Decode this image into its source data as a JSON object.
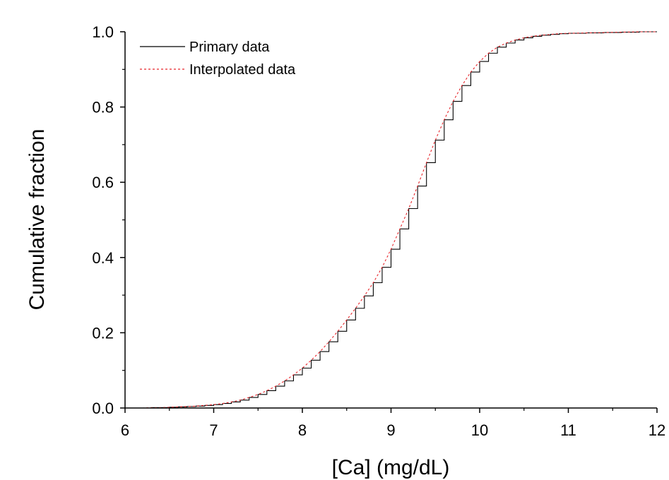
{
  "chart_data": {
    "type": "line",
    "title": "",
    "xlabel": "[Ca] (mg/dL)",
    "ylabel": "Cumulative fraction",
    "xlim": [
      6,
      12
    ],
    "ylim": [
      0,
      1.0
    ],
    "x_ticks": [
      "6",
      "7",
      "8",
      "9",
      "10",
      "11",
      "12"
    ],
    "y_ticks": [
      "0.0",
      "0.2",
      "0.4",
      "0.6",
      "0.8",
      "1.0"
    ],
    "grid": false,
    "legend_position": "top-left",
    "series": [
      {
        "name": "Primary data",
        "style": "step",
        "color": "#000000",
        "x": [
          6.0,
          6.1,
          6.2,
          6.3,
          6.4,
          6.5,
          6.6,
          6.7,
          6.8,
          6.9,
          7.0,
          7.1,
          7.2,
          7.3,
          7.4,
          7.5,
          7.6,
          7.7,
          7.8,
          7.9,
          8.0,
          8.1,
          8.2,
          8.3,
          8.4,
          8.5,
          8.6,
          8.7,
          8.8,
          8.9,
          9.0,
          9.1,
          9.2,
          9.3,
          9.4,
          9.5,
          9.6,
          9.7,
          9.8,
          9.9,
          10.0,
          10.1,
          10.2,
          10.3,
          10.4,
          10.5,
          10.6,
          10.7,
          10.8,
          10.9,
          11.0,
          11.2,
          11.4,
          11.6,
          11.8,
          12.0
        ],
        "y": [
          0.0,
          0.0,
          0.0,
          0.001,
          0.001,
          0.002,
          0.003,
          0.004,
          0.005,
          0.007,
          0.009,
          0.012,
          0.016,
          0.021,
          0.028,
          0.036,
          0.046,
          0.058,
          0.072,
          0.088,
          0.106,
          0.127,
          0.15,
          0.176,
          0.204,
          0.234,
          0.265,
          0.298,
          0.333,
          0.374,
          0.422,
          0.476,
          0.53,
          0.59,
          0.652,
          0.712,
          0.766,
          0.815,
          0.857,
          0.893,
          0.921,
          0.943,
          0.959,
          0.97,
          0.978,
          0.984,
          0.988,
          0.991,
          0.993,
          0.995,
          0.996,
          0.997,
          0.998,
          0.999,
          1.0,
          1.0
        ]
      },
      {
        "name": "Interpolated data",
        "style": "dashed",
        "color": "#e8262b",
        "x": [
          6.0,
          6.1,
          6.2,
          6.3,
          6.4,
          6.5,
          6.6,
          6.7,
          6.8,
          6.9,
          7.0,
          7.1,
          7.2,
          7.3,
          7.4,
          7.5,
          7.6,
          7.7,
          7.8,
          7.9,
          8.0,
          8.1,
          8.2,
          8.3,
          8.4,
          8.5,
          8.6,
          8.7,
          8.8,
          8.9,
          9.0,
          9.1,
          9.2,
          9.3,
          9.4,
          9.5,
          9.6,
          9.7,
          9.8,
          9.9,
          10.0,
          10.1,
          10.2,
          10.3,
          10.4,
          10.5,
          10.6,
          10.7,
          10.8,
          10.9,
          11.0,
          11.2,
          11.4,
          11.6,
          11.8,
          12.0
        ],
        "y": [
          0.0,
          0.0,
          0.0,
          0.001,
          0.001,
          0.002,
          0.003,
          0.004,
          0.005,
          0.007,
          0.009,
          0.012,
          0.016,
          0.021,
          0.028,
          0.036,
          0.046,
          0.058,
          0.072,
          0.088,
          0.106,
          0.127,
          0.15,
          0.176,
          0.204,
          0.234,
          0.265,
          0.298,
          0.333,
          0.374,
          0.422,
          0.476,
          0.53,
          0.59,
          0.652,
          0.712,
          0.766,
          0.815,
          0.857,
          0.893,
          0.921,
          0.943,
          0.959,
          0.97,
          0.978,
          0.984,
          0.988,
          0.991,
          0.993,
          0.995,
          0.996,
          0.997,
          0.998,
          0.999,
          1.0,
          1.0
        ]
      }
    ]
  }
}
